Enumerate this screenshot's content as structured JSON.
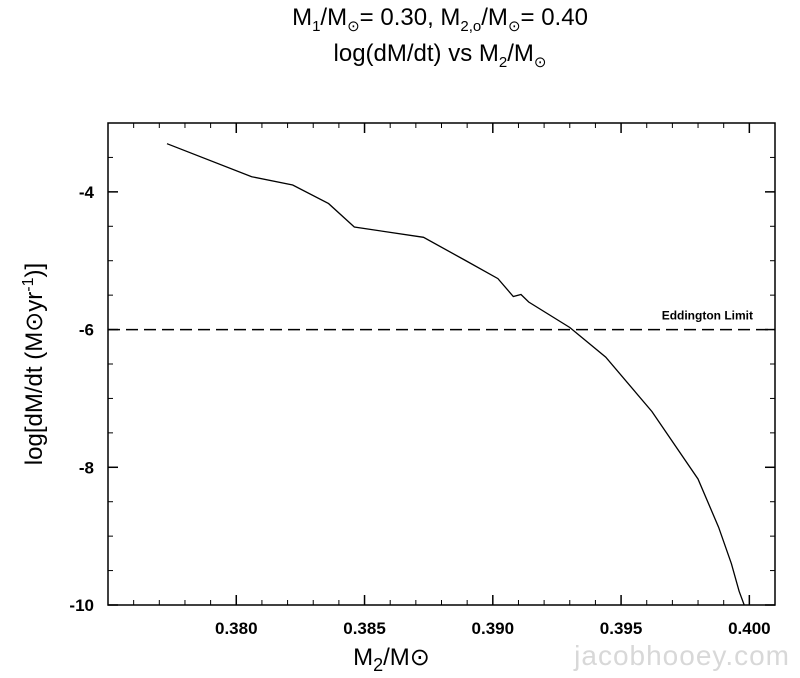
{
  "title": {
    "line1_a": "M",
    "line1_a_sub": "1",
    "line1_b": "/M",
    "line1_b_sub": "⊙",
    "line1_c": "= 0.30,  M",
    "line1_c_sub": "2,o",
    "line1_d": "/M",
    "line1_d_sub": "⊙",
    "line1_e": "= 0.40",
    "line2_a": "log(dM/dt) vs M",
    "line2_a_sub": "2",
    "line2_b": "/M",
    "line2_b_sub": "⊙"
  },
  "watermark": "jacobhooey.com",
  "chart_data": {
    "type": "line",
    "xlabel": "M2/M⊙",
    "ylabel": "log[dM/dt (M⊙yr-1)]",
    "xlim": [
      0.375,
      0.401
    ],
    "ylim": [
      -10,
      -3.0
    ],
    "xticks": [
      {
        "v": 0.38,
        "label": "0.380"
      },
      {
        "v": 0.385,
        "label": "0.385"
      },
      {
        "v": 0.39,
        "label": "0.390"
      },
      {
        "v": 0.395,
        "label": "0.395"
      },
      {
        "v": 0.4,
        "label": "0.400"
      }
    ],
    "yticks": [
      {
        "v": -4,
        "label": "-4"
      },
      {
        "v": -6,
        "label": "-6"
      },
      {
        "v": -8,
        "label": "-8"
      },
      {
        "v": -10,
        "label": "-10"
      }
    ],
    "grid": false,
    "series": [
      {
        "x": [
          0.3773,
          0.3806,
          0.3822,
          0.3836,
          0.3846,
          0.3873,
          0.3889,
          0.3902,
          0.3908,
          0.3911,
          0.3914,
          0.393,
          0.3944,
          0.3962,
          0.398,
          0.3988,
          0.3993,
          0.3996,
          0.3998
        ],
        "y": [
          -3.3,
          -3.78,
          -3.9,
          -4.17,
          -4.51,
          -4.66,
          -4.99,
          -5.26,
          -5.52,
          -5.49,
          -5.6,
          -5.97,
          -6.4,
          -7.19,
          -8.17,
          -8.87,
          -9.4,
          -9.8,
          -10.0
        ]
      }
    ],
    "reference_line": {
      "y": -6,
      "style": "dashed",
      "label": "Eddington Limit"
    }
  }
}
